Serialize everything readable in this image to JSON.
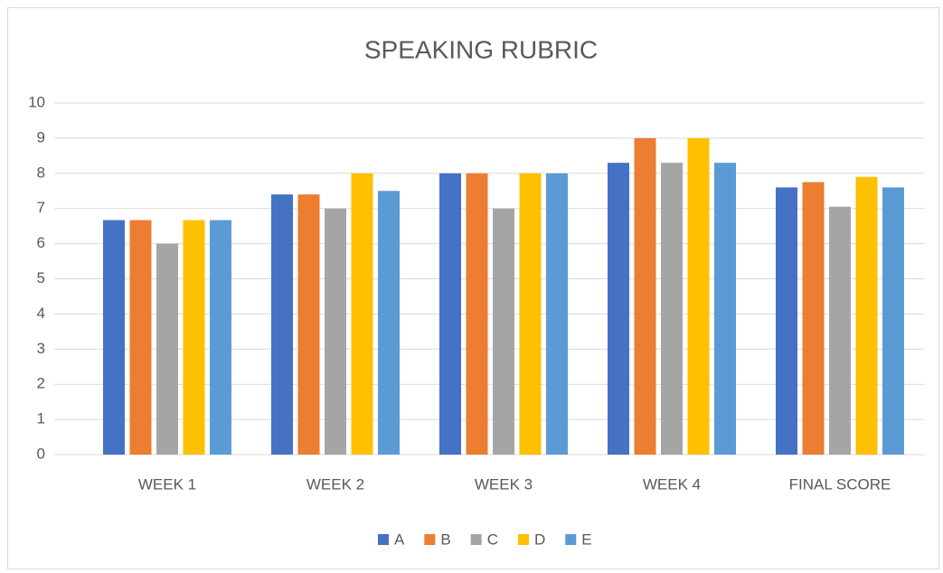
{
  "chart_data": {
    "type": "bar",
    "title": "SPEAKING RUBRIC",
    "categories": [
      "WEEK 1",
      "WEEK 2",
      "WEEK 3",
      "WEEK 4",
      "FINAL SCORE"
    ],
    "series": [
      {
        "name": "A",
        "color": "#4472c4",
        "values": [
          6.67,
          7.4,
          8,
          8.3,
          7.6
        ]
      },
      {
        "name": "B",
        "color": "#ed7d31",
        "values": [
          6.67,
          7.4,
          8,
          9,
          7.75
        ]
      },
      {
        "name": "C",
        "color": "#a5a5a5",
        "values": [
          6,
          7,
          7,
          8.3,
          7.05
        ]
      },
      {
        "name": "D",
        "color": "#ffc000",
        "values": [
          6.67,
          8,
          8,
          9,
          7.9
        ]
      },
      {
        "name": "E",
        "color": "#5b9bd5",
        "values": [
          6.67,
          7.5,
          8,
          8.3,
          7.6
        ]
      }
    ],
    "ylim": [
      0,
      10
    ],
    "yticks": [
      0,
      1,
      2,
      3,
      4,
      5,
      6,
      7,
      8,
      9,
      10
    ],
    "grid": true,
    "legend": "bottom"
  }
}
